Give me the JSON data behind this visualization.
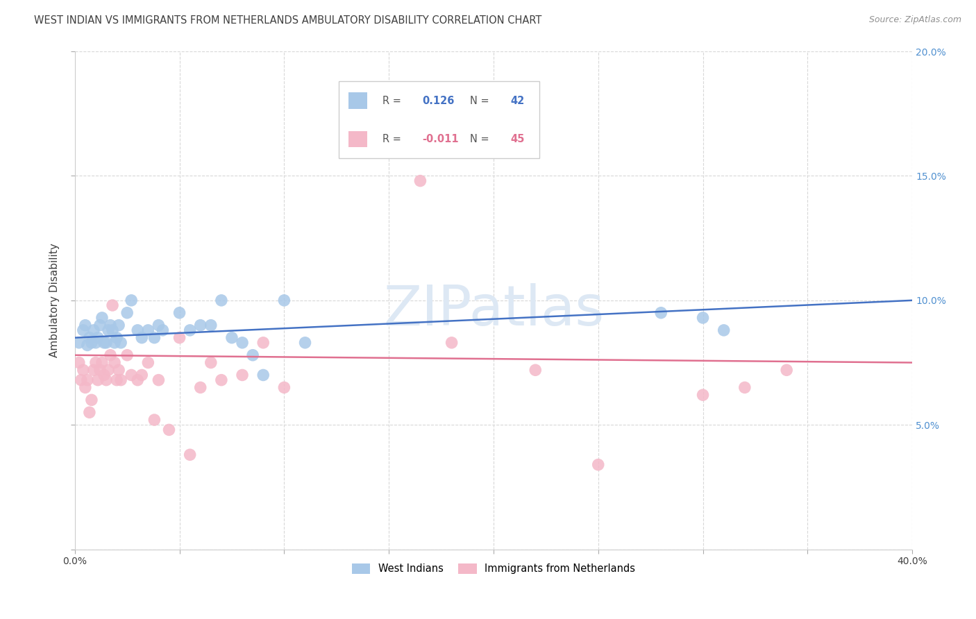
{
  "title": "WEST INDIAN VS IMMIGRANTS FROM NETHERLANDS AMBULATORY DISABILITY CORRELATION CHART",
  "source": "Source: ZipAtlas.com",
  "ylabel": "Ambulatory Disability",
  "xlim": [
    0.0,
    0.4
  ],
  "ylim": [
    0.0,
    0.2
  ],
  "xticks": [
    0.0,
    0.05,
    0.1,
    0.15,
    0.2,
    0.25,
    0.3,
    0.35,
    0.4
  ],
  "yticks": [
    0.0,
    0.05,
    0.1,
    0.15,
    0.2
  ],
  "blue_R": "0.126",
  "blue_N": "42",
  "pink_R": "-0.011",
  "pink_N": "45",
  "watermark": "ZIPatlas",
  "blue_color": "#a8c8e8",
  "pink_color": "#f4b8c8",
  "blue_line_color": "#4472c4",
  "pink_line_color": "#e07090",
  "background_color": "#ffffff",
  "grid_color": "#d8d8d8",
  "title_color": "#404040",
  "source_color": "#909090",
  "right_tick_color": "#5090d0",
  "blue_scatter_x": [
    0.002,
    0.004,
    0.005,
    0.006,
    0.007,
    0.008,
    0.009,
    0.01,
    0.011,
    0.012,
    0.013,
    0.014,
    0.015,
    0.016,
    0.017,
    0.018,
    0.019,
    0.02,
    0.021,
    0.022,
    0.025,
    0.027,
    0.03,
    0.032,
    0.035,
    0.038,
    0.04,
    0.042,
    0.05,
    0.055,
    0.06,
    0.065,
    0.07,
    0.075,
    0.08,
    0.085,
    0.09,
    0.1,
    0.11,
    0.28,
    0.3,
    0.31
  ],
  "blue_scatter_y": [
    0.083,
    0.088,
    0.09,
    0.082,
    0.085,
    0.083,
    0.088,
    0.083,
    0.085,
    0.09,
    0.093,
    0.083,
    0.083,
    0.088,
    0.09,
    0.088,
    0.083,
    0.085,
    0.09,
    0.083,
    0.095,
    0.1,
    0.088,
    0.085,
    0.088,
    0.085,
    0.09,
    0.088,
    0.095,
    0.088,
    0.09,
    0.09,
    0.1,
    0.085,
    0.083,
    0.078,
    0.07,
    0.1,
    0.083,
    0.095,
    0.093,
    0.088
  ],
  "pink_scatter_x": [
    0.002,
    0.003,
    0.004,
    0.005,
    0.006,
    0.007,
    0.008,
    0.009,
    0.01,
    0.011,
    0.012,
    0.013,
    0.014,
    0.015,
    0.016,
    0.017,
    0.018,
    0.019,
    0.02,
    0.021,
    0.022,
    0.025,
    0.027,
    0.03,
    0.032,
    0.035,
    0.038,
    0.04,
    0.045,
    0.05,
    0.055,
    0.06,
    0.065,
    0.07,
    0.08,
    0.09,
    0.1,
    0.15,
    0.165,
    0.18,
    0.22,
    0.25,
    0.3,
    0.32,
    0.34
  ],
  "pink_scatter_y": [
    0.075,
    0.068,
    0.072,
    0.065,
    0.068,
    0.055,
    0.06,
    0.072,
    0.075,
    0.068,
    0.072,
    0.075,
    0.07,
    0.068,
    0.072,
    0.078,
    0.098,
    0.075,
    0.068,
    0.072,
    0.068,
    0.078,
    0.07,
    0.068,
    0.07,
    0.075,
    0.052,
    0.068,
    0.048,
    0.085,
    0.038,
    0.065,
    0.075,
    0.068,
    0.07,
    0.083,
    0.065,
    0.165,
    0.148,
    0.083,
    0.072,
    0.034,
    0.062,
    0.065,
    0.072
  ],
  "blue_line": [
    [
      0.0,
      0.085
    ],
    [
      0.4,
      0.1
    ]
  ],
  "pink_line": [
    [
      0.0,
      0.078
    ],
    [
      0.4,
      0.075
    ]
  ],
  "figsize": [
    14.06,
    8.92
  ],
  "dpi": 100
}
